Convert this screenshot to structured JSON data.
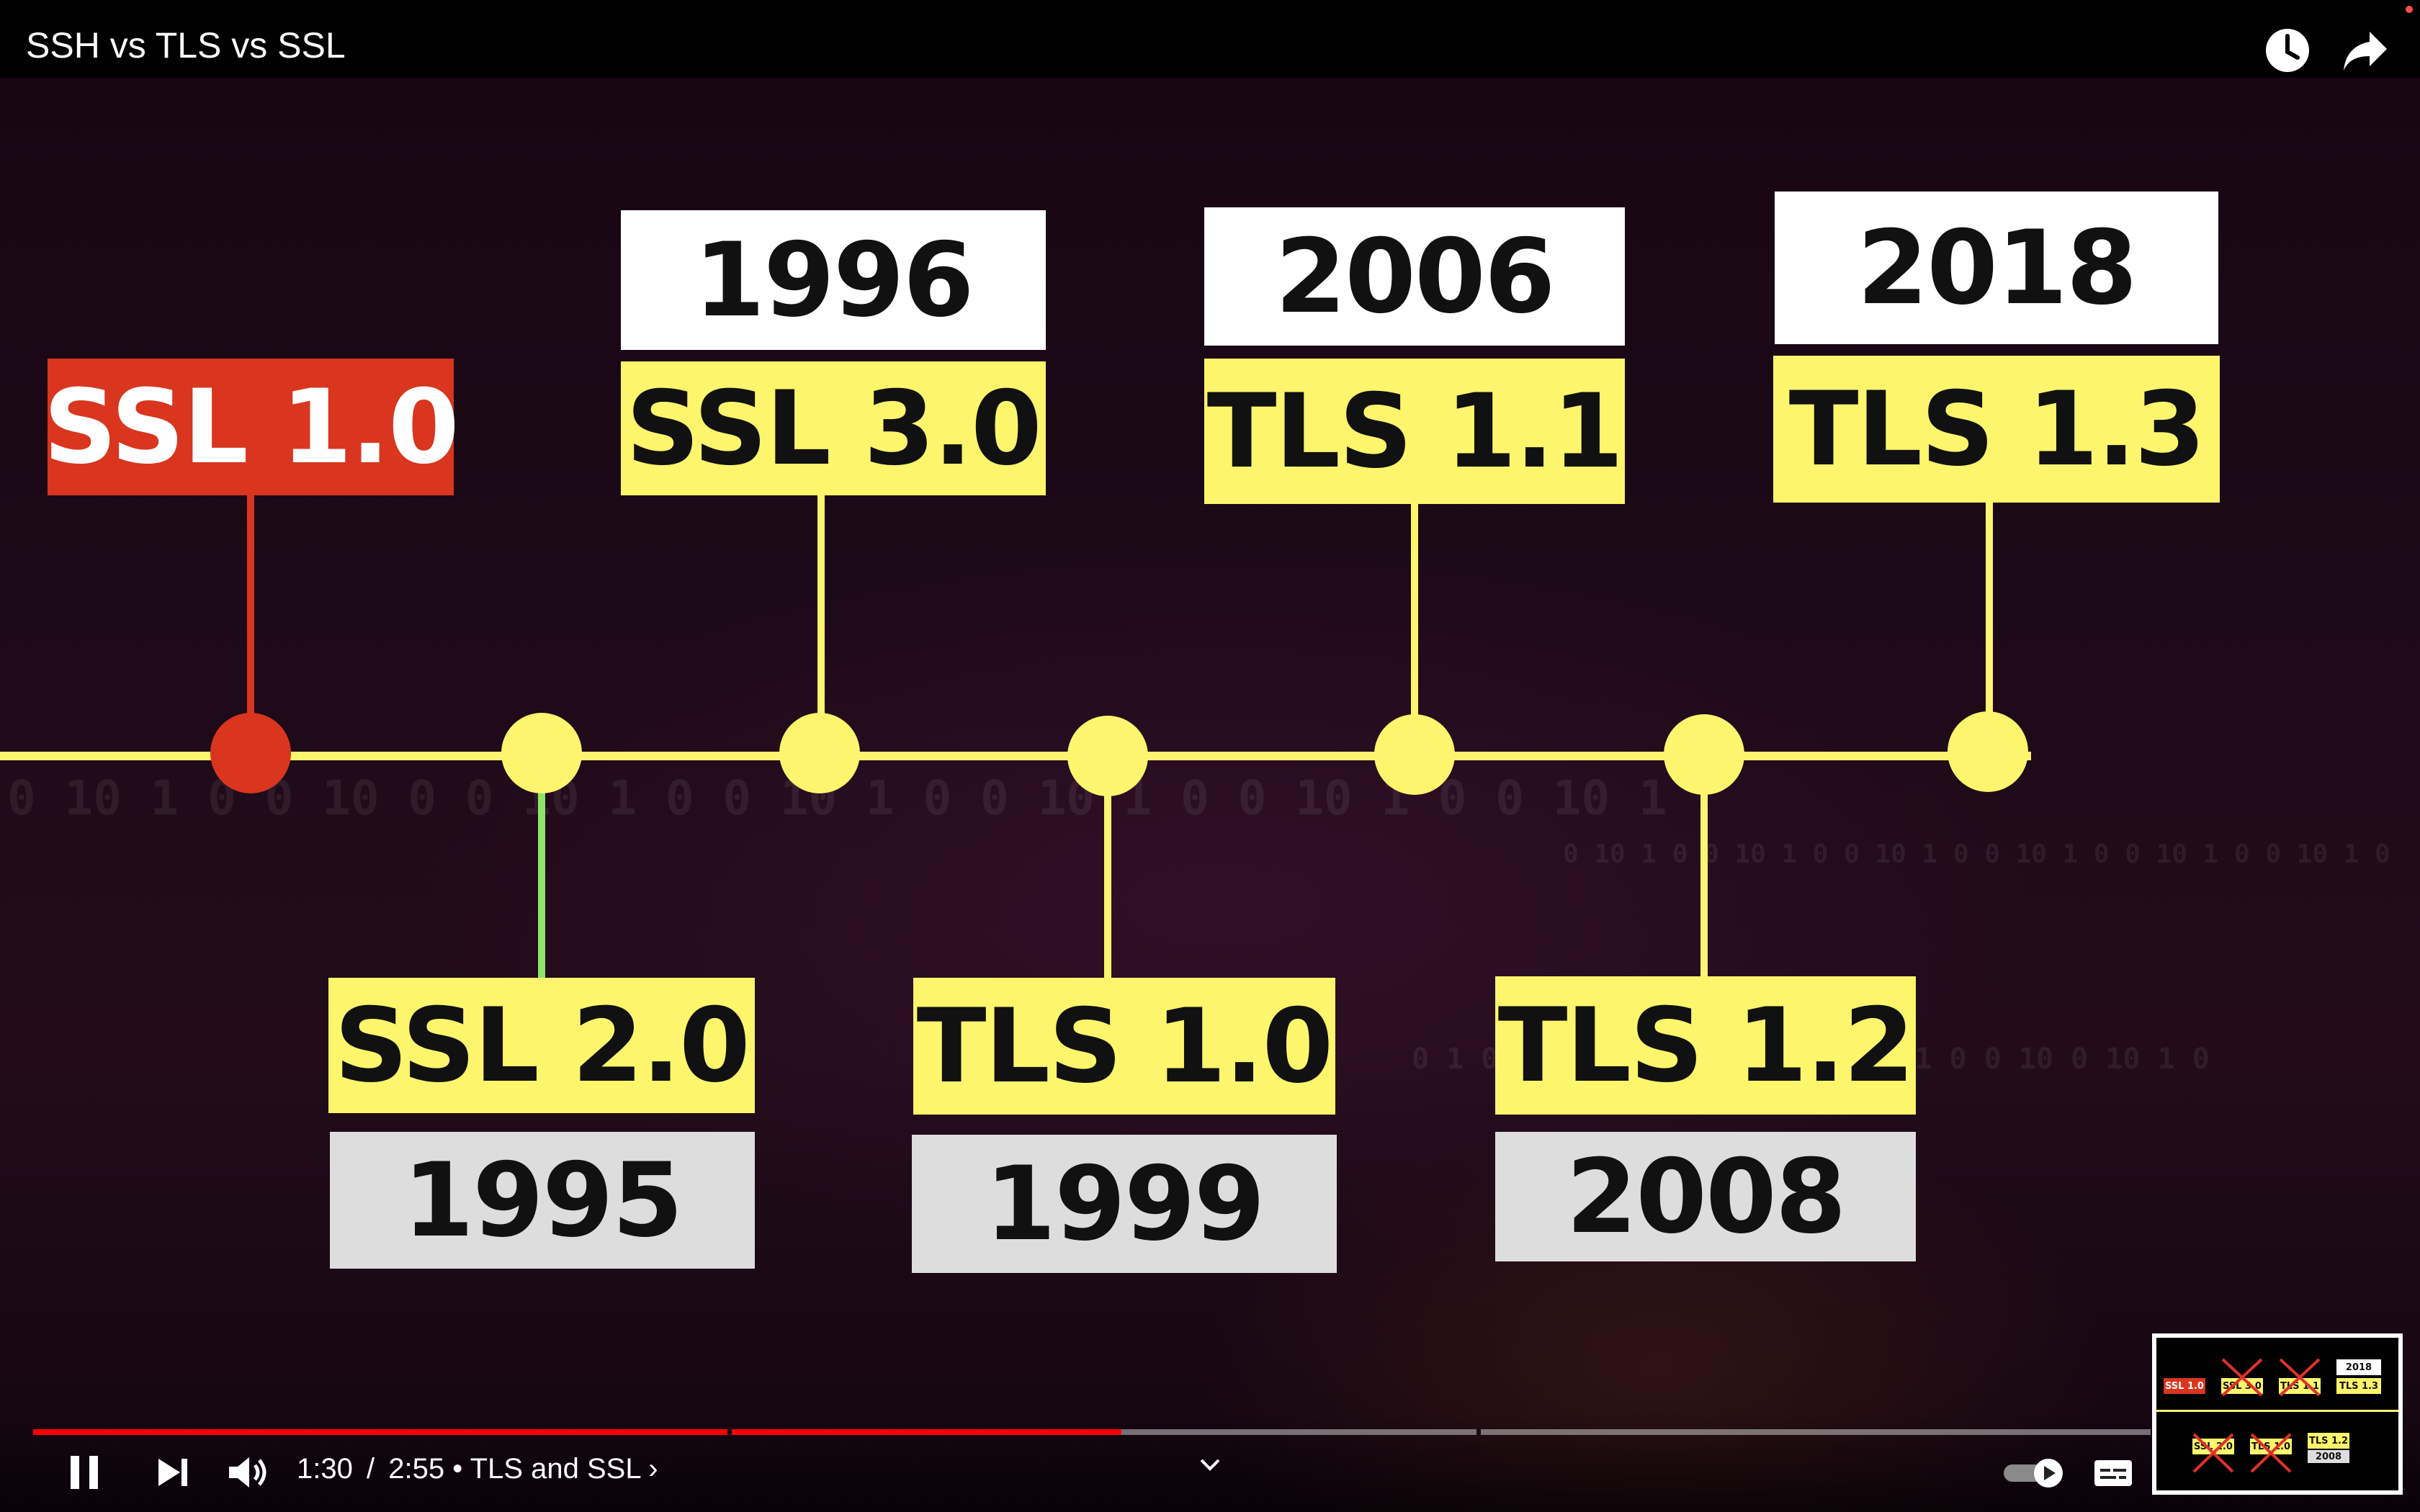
{
  "window": {
    "title": "SSH vs TLS vs SSL"
  },
  "top_icons": [
    "clock-icon",
    "share-icon"
  ],
  "timeline": {
    "line_color": "#fcf56d",
    "above": [
      {
        "version": "SSL 1.0",
        "year": "",
        "status": "highlighted",
        "color": "#d9351f"
      },
      {
        "version": "SSL 3.0",
        "year": "1996"
      },
      {
        "version": "TLS 1.1",
        "year": "2006"
      },
      {
        "version": "TLS 1.3",
        "year": "2018"
      }
    ],
    "below": [
      {
        "version": "SSL 2.0",
        "year": "1995"
      },
      {
        "version": "TLS 1.0",
        "year": "1999"
      },
      {
        "version": "TLS 1.2",
        "year": "2008"
      }
    ]
  },
  "background_digits": [
    "0   10  1  0  0    10  0     0   10  1  0      0  10  1  0     0  10  1  0    0   10 1  0  0  10  1",
    "0  10  1  0     0 10  1 0    0  10  1  0    0  10 1  0    0  10  1  0    0 10  1  0",
    "0   1 0    0  10 1  0     0   10  1 0        0  10  1  0    0  10 0  10  1  0"
  ],
  "player": {
    "time_current": "1:30",
    "time_total": "2:55",
    "chapter": "TLS and SSL",
    "progress_percent": 51.4,
    "icons": [
      "pause-icon",
      "next-icon",
      "volume-icon",
      "chevron-up-icon",
      "autoplay-toggle-icon",
      "subtitles-icon"
    ]
  },
  "minimap": {
    "labels": [
      "SSL 1.0",
      "SSL 3.0",
      "TLS 1.1",
      "2018",
      "TLS 1.3",
      "SSL 2.0",
      "TLS 1.0",
      "TLS 1.2",
      "2008"
    ]
  }
}
